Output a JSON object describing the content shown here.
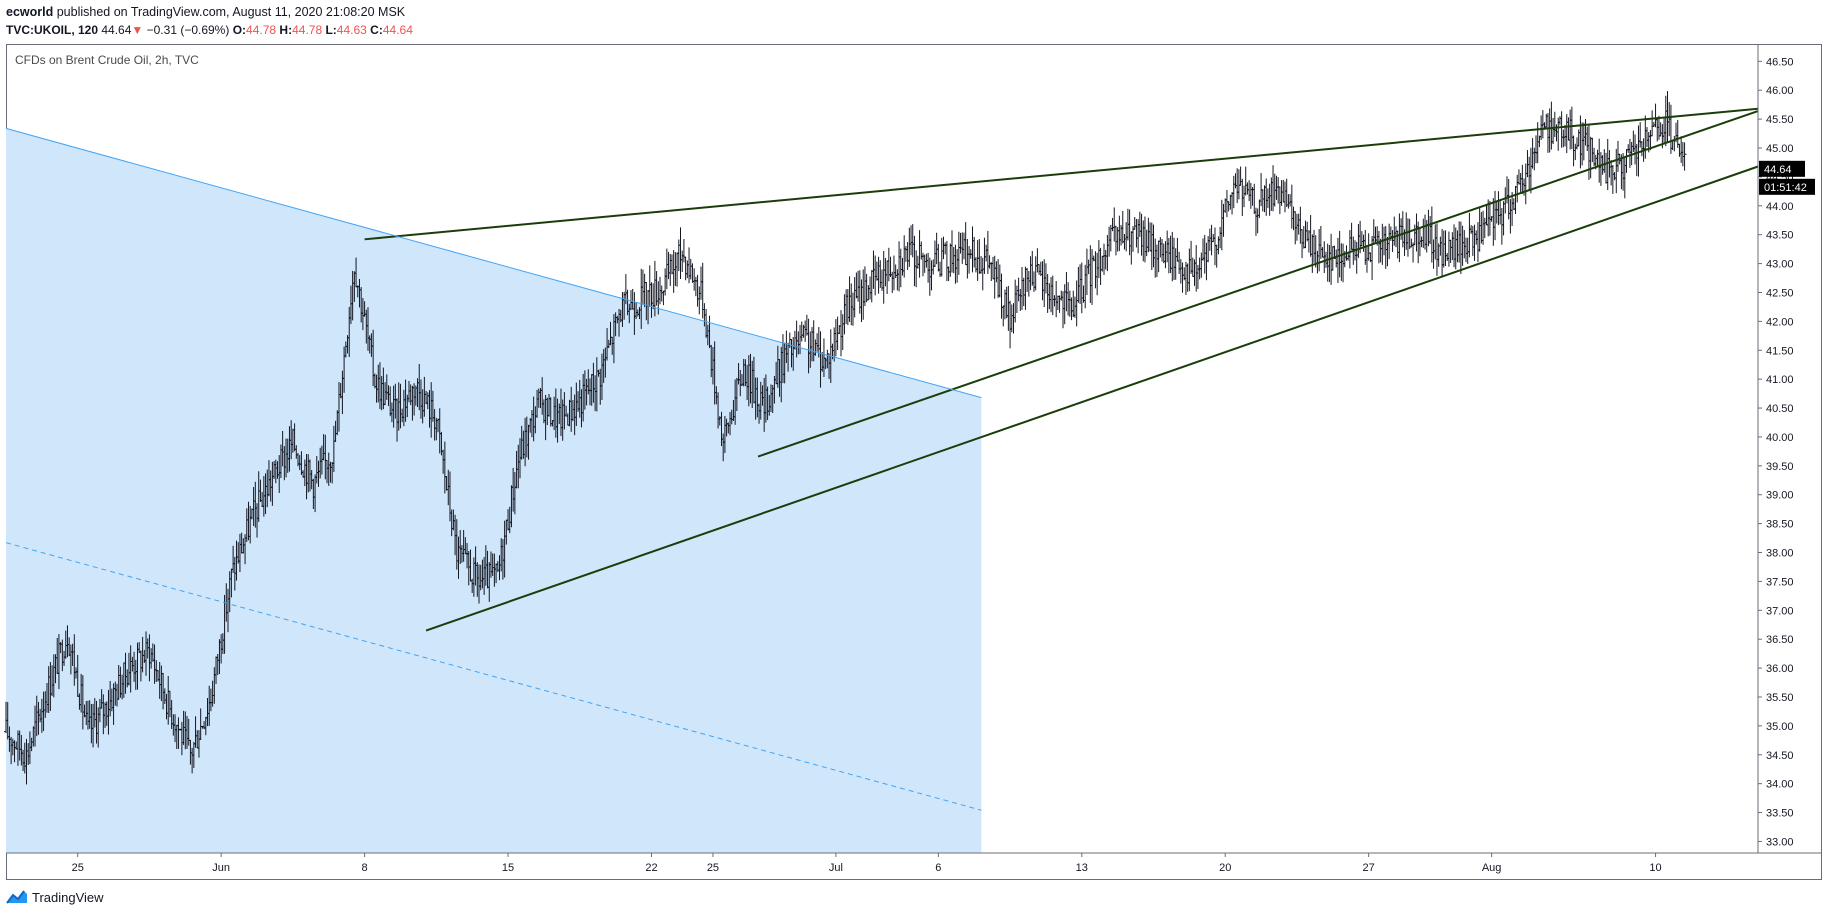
{
  "header": {
    "publisher": "ecworld",
    "published_text": "published on TradingView.com, August 11, 2020 21:08:20 MSK",
    "symbol": "TVC:UKOIL, 120",
    "last": "44.64",
    "change": "−0.31 (−0.69%)",
    "open_label": "O:",
    "open_value": "44.78",
    "high_label": "H:",
    "high_value": "44.78",
    "low_label": "L:",
    "low_value": "44.63",
    "close_label": "C:",
    "close_value": "44.64"
  },
  "chart_title": "CFDs on Brent Crude Oil, 2h, TVC",
  "footer": {
    "brand": "TradingView"
  },
  "colors": {
    "bars": "#131722",
    "trendline": "#1b3d0a",
    "channel_fill": "#cfe6fb",
    "channel_line": "#42a5f5",
    "price_tag": "#000000",
    "down_arrow": "#ef5350"
  },
  "chart_data": {
    "type": "ohlc",
    "instrument": "CFDs on Brent Crude Oil",
    "interval": "2h",
    "ylim": [
      32.8,
      46.8
    ],
    "y_ticks": [
      "33.00",
      "33.50",
      "34.00",
      "34.50",
      "35.00",
      "35.50",
      "36.00",
      "36.50",
      "37.00",
      "37.50",
      "38.00",
      "38.50",
      "39.00",
      "39.50",
      "40.00",
      "40.50",
      "41.00",
      "41.50",
      "42.00",
      "42.50",
      "43.00",
      "43.50",
      "44.00",
      "44.50",
      "45.00",
      "45.50",
      "46.00",
      "46.50"
    ],
    "x_ticks": [
      {
        "label": "25",
        "day": 0
      },
      {
        "label": "Jun",
        "day": 7
      },
      {
        "label": "8",
        "day": 14
      },
      {
        "label": "15",
        "day": 21
      },
      {
        "label": "22",
        "day": 28
      },
      {
        "label": "25",
        "day": 31
      },
      {
        "label": "Jul",
        "day": 37
      },
      {
        "label": "6",
        "day": 42
      },
      {
        "label": "13",
        "day": 49
      },
      {
        "label": "20",
        "day": 56
      },
      {
        "label": "27",
        "day": 63
      },
      {
        "label": "Aug",
        "day": 69
      },
      {
        "label": "10",
        "day": 77
      }
    ],
    "x_range_days": [
      -3.5,
      82
    ],
    "last_price": "44.64",
    "countdown": "01:51:42",
    "daily_closes": [
      {
        "day": -3.5,
        "price": 34.9
      },
      {
        "day": -2.5,
        "price": 34.5
      },
      {
        "day": -1.5,
        "price": 35.6
      },
      {
        "day": -0.5,
        "price": 36.6
      },
      {
        "day": 0.5,
        "price": 34.9
      },
      {
        "day": 1.5,
        "price": 35.4
      },
      {
        "day": 2.5,
        "price": 36.0
      },
      {
        "day": 3.5,
        "price": 36.3
      },
      {
        "day": 4.5,
        "price": 35.3
      },
      {
        "day": 5.5,
        "price": 34.5
      },
      {
        "day": 6.5,
        "price": 35.5
      },
      {
        "day": 7.5,
        "price": 37.6
      },
      {
        "day": 8.5,
        "price": 38.6
      },
      {
        "day": 9.5,
        "price": 39.3
      },
      {
        "day": 10.5,
        "price": 39.9
      },
      {
        "day": 11.5,
        "price": 39.2
      },
      {
        "day": 12.5,
        "price": 39.8
      },
      {
        "day": 13.5,
        "price": 43.0
      },
      {
        "day": 14.5,
        "price": 41.0
      },
      {
        "day": 15.5,
        "price": 40.4
      },
      {
        "day": 16.5,
        "price": 40.9
      },
      {
        "day": 17.5,
        "price": 40.3
      },
      {
        "day": 18.5,
        "price": 38.0
      },
      {
        "day": 19.5,
        "price": 37.5
      },
      {
        "day": 20.5,
        "price": 37.6
      },
      {
        "day": 21.5,
        "price": 39.6
      },
      {
        "day": 22.5,
        "price": 40.6
      },
      {
        "day": 23.5,
        "price": 40.3
      },
      {
        "day": 24.5,
        "price": 40.6
      },
      {
        "day": 25.5,
        "price": 41.1
      },
      {
        "day": 26.5,
        "price": 42.2
      },
      {
        "day": 27.5,
        "price": 42.4
      },
      {
        "day": 28.5,
        "price": 42.6
      },
      {
        "day": 29.5,
        "price": 43.2
      },
      {
        "day": 30.5,
        "price": 42.4
      },
      {
        "day": 31.5,
        "price": 39.9
      },
      {
        "day": 32.5,
        "price": 41.2
      },
      {
        "day": 33.5,
        "price": 40.5
      },
      {
        "day": 34.5,
        "price": 41.4
      },
      {
        "day": 35.5,
        "price": 41.7
      },
      {
        "day": 36.5,
        "price": 41.3
      },
      {
        "day": 37.5,
        "price": 42.2
      },
      {
        "day": 38.5,
        "price": 42.6
      },
      {
        "day": 39.5,
        "price": 42.9
      },
      {
        "day": 40.5,
        "price": 43.2
      },
      {
        "day": 41.5,
        "price": 43.0
      },
      {
        "day": 42.5,
        "price": 43.1
      },
      {
        "day": 43.5,
        "price": 43.2
      },
      {
        "day": 44.5,
        "price": 43.0
      },
      {
        "day": 45.5,
        "price": 42.0
      },
      {
        "day": 46.5,
        "price": 42.9
      },
      {
        "day": 47.5,
        "price": 42.5
      },
      {
        "day": 48.5,
        "price": 42.2
      },
      {
        "day": 49.5,
        "price": 42.9
      },
      {
        "day": 50.5,
        "price": 43.4
      },
      {
        "day": 51.5,
        "price": 43.5
      },
      {
        "day": 52.5,
        "price": 43.3
      },
      {
        "day": 53.5,
        "price": 43.1
      },
      {
        "day": 54.5,
        "price": 42.8
      },
      {
        "day": 55.5,
        "price": 43.4
      },
      {
        "day": 56.5,
        "price": 44.4
      },
      {
        "day": 57.5,
        "price": 44.0
      },
      {
        "day": 58.5,
        "price": 44.3
      },
      {
        "day": 59.5,
        "price": 43.6
      },
      {
        "day": 60.5,
        "price": 43.2
      },
      {
        "day": 61.5,
        "price": 43.1
      },
      {
        "day": 62.5,
        "price": 43.3
      },
      {
        "day": 63.5,
        "price": 43.3
      },
      {
        "day": 64.5,
        "price": 43.4
      },
      {
        "day": 65.5,
        "price": 43.6
      },
      {
        "day": 66.5,
        "price": 43.2
      },
      {
        "day": 67.5,
        "price": 43.3
      },
      {
        "day": 68.5,
        "price": 43.5
      },
      {
        "day": 69.5,
        "price": 43.9
      },
      {
        "day": 70.5,
        "price": 44.4
      },
      {
        "day": 71.5,
        "price": 45.4
      },
      {
        "day": 72.5,
        "price": 45.3
      },
      {
        "day": 73.5,
        "price": 45.1
      },
      {
        "day": 74.5,
        "price": 44.6
      },
      {
        "day": 75.5,
        "price": 44.7
      },
      {
        "day": 76.5,
        "price": 45.1
      },
      {
        "day": 77.5,
        "price": 45.4
      },
      {
        "day": 78.5,
        "price": 44.64
      }
    ],
    "drawings": [
      {
        "name": "upper-resistance-line",
        "points": [
          [
            14,
            43.42
          ],
          [
            82,
            45.68
          ]
        ]
      },
      {
        "name": "upper-support-line",
        "points": [
          [
            33.2,
            39.66
          ],
          [
            82,
            45.64
          ]
        ]
      },
      {
        "name": "lower-support-line",
        "points": [
          [
            17,
            36.65
          ],
          [
            82,
            44.68
          ]
        ]
      },
      {
        "name": "descending-channel-top",
        "points": [
          [
            -3.5,
            45.34
          ],
          [
            44.1,
            40.68
          ]
        ]
      },
      {
        "name": "descending-channel-bottom-dashed",
        "points": [
          [
            -3.5,
            38.17
          ],
          [
            44.1,
            33.54
          ]
        ]
      }
    ]
  }
}
